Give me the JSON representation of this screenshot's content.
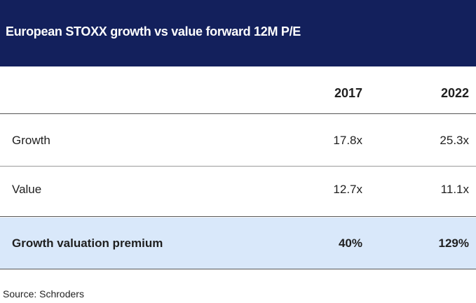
{
  "chart_data": {
    "type": "table",
    "title": "European STOXX growth vs value forward 12M P/E",
    "columns": [
      "",
      "2017",
      "2022"
    ],
    "rows": [
      {
        "label": "Growth",
        "values": [
          "17.8x",
          "25.3x"
        ]
      },
      {
        "label": "Value",
        "values": [
          "12.7x",
          "11.1x"
        ]
      },
      {
        "label": "Growth valuation premium",
        "values": [
          "40%",
          "129%"
        ]
      }
    ],
    "source": "Source: Schroders"
  },
  "colors": {
    "title_background": "#13205c",
    "title_text": "#ffffff",
    "highlight_row": "#d9e8fa"
  }
}
